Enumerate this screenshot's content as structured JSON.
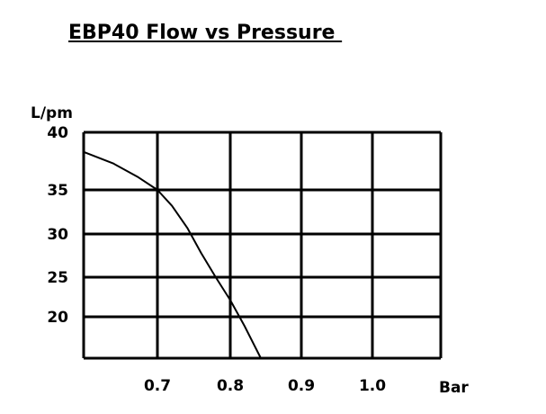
{
  "chart_data": {
    "type": "line",
    "title": "EBP40 Flow vs Pressure ",
    "xlabel": "Bar",
    "ylabel": "L/pm",
    "xlim": [
      0.6,
      1.1
    ],
    "ylim": [
      15,
      40
    ],
    "x_ticks": [
      0.7,
      0.8,
      0.9,
      1.0
    ],
    "x_tick_labels": [
      "0.7",
      "0.8",
      "0.9",
      "1.0"
    ],
    "y_ticks": [
      40,
      35,
      30,
      25,
      20
    ],
    "y_tick_labels": [
      "40",
      "35",
      "30",
      "25",
      "20"
    ],
    "grid": true,
    "series": [
      {
        "color": "#000000",
        "x": [
          0.6,
          0.64,
          0.674,
          0.7,
          0.72,
          0.741,
          0.76,
          0.78,
          0.8,
          0.82,
          0.843
        ],
        "y": [
          38.3,
          37.3,
          36.1,
          35.0,
          33.2,
          30.7,
          27.8,
          25.0,
          22.1,
          18.9,
          15.0
        ]
      }
    ]
  }
}
